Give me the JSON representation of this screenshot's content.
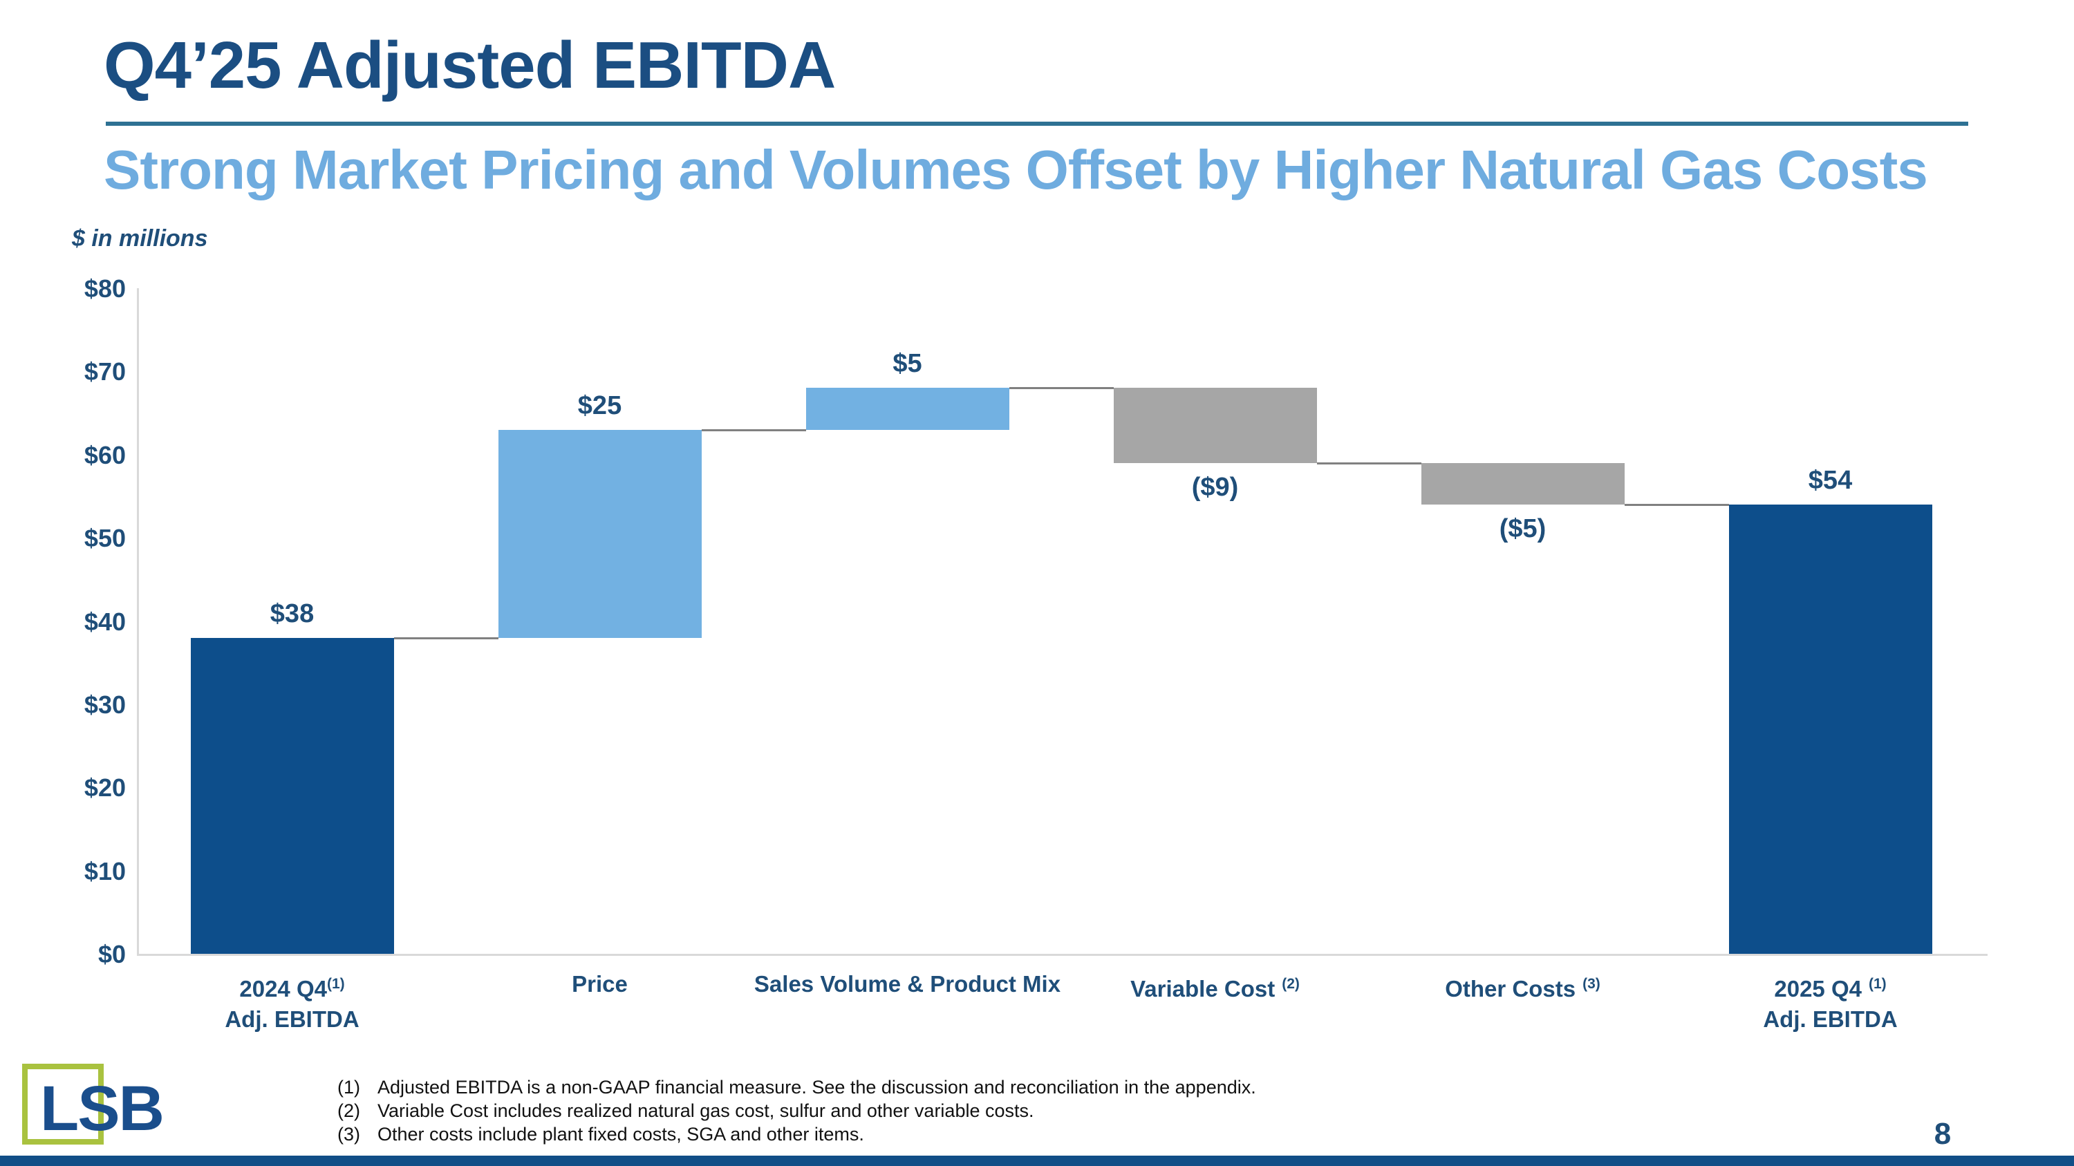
{
  "slide": {
    "title": "Q4’25 Adjusted EBITDA",
    "subtitle": "Strong Market Pricing and Volumes Offset by Higher Natural Gas Costs",
    "units_note": "$ in millions",
    "page_number": "8",
    "logo_text": "LSB"
  },
  "chart_data": {
    "type": "bar",
    "subtype": "waterfall",
    "title": "Q4'25 Adjusted EBITDA bridge, $ in millions",
    "ylabel": "$ in millions",
    "ylim": [
      0,
      80
    ],
    "ytick_step": 10,
    "yticks": [
      {
        "value": 0,
        "label": "$0"
      },
      {
        "value": 10,
        "label": "$10"
      },
      {
        "value": 20,
        "label": "$20"
      },
      {
        "value": 30,
        "label": "$30"
      },
      {
        "value": 40,
        "label": "$40"
      },
      {
        "value": 50,
        "label": "$50"
      },
      {
        "value": 60,
        "label": "$60"
      },
      {
        "value": 70,
        "label": "$70"
      },
      {
        "value": 80,
        "label": "$80"
      }
    ],
    "grid": false,
    "legend": "none",
    "bars": [
      {
        "name": "2024 Q4 Adj. EBITDA",
        "value": 38,
        "y0": 0,
        "y1": 38,
        "end": 38,
        "label": "$38",
        "label_pos": "above",
        "color_key": "navy"
      },
      {
        "name": "Price",
        "value": 25,
        "y0": 38,
        "y1": 63,
        "end": 63,
        "label": "$25",
        "label_pos": "above",
        "color_key": "lightblue"
      },
      {
        "name": "Sales Volume & Product Mix",
        "value": 5,
        "y0": 63,
        "y1": 68,
        "end": 68,
        "label": "$5",
        "label_pos": "above",
        "color_key": "lightblue"
      },
      {
        "name": "Variable Cost",
        "value": -9,
        "y0": 59,
        "y1": 68,
        "end": 59,
        "label": "($9)",
        "label_pos": "below",
        "color_key": "gray"
      },
      {
        "name": "Other Costs",
        "value": -5,
        "y0": 54,
        "y1": 59,
        "end": 54,
        "label": "($5)",
        "label_pos": "below",
        "color_key": "gray"
      },
      {
        "name": "2025 Q4 Adj. EBITDA",
        "value": 54,
        "y0": 0,
        "y1": 54,
        "end": 54,
        "label": "$54",
        "label_pos": "above",
        "color_key": "navy"
      }
    ],
    "categories": [
      {
        "line1": "2024 Q4",
        "sup": "(1)",
        "sup_spaced": false,
        "line2": "Adj. EBITDA"
      },
      {
        "line1": "Price",
        "sup": "",
        "sup_spaced": false,
        "line2": ""
      },
      {
        "line1": "Sales Volume & Product Mix",
        "sup": "",
        "sup_spaced": false,
        "line2": ""
      },
      {
        "line1": "Variable Cost",
        "sup": "(2)",
        "sup_spaced": true,
        "line2": ""
      },
      {
        "line1": "Other Costs",
        "sup": "(3)",
        "sup_spaced": true,
        "line2": ""
      },
      {
        "line1": "2025 Q4",
        "sup": "(1)",
        "sup_spaced": true,
        "line2": "Adj. EBITDA"
      }
    ]
  },
  "footnotes": [
    {
      "num": "(1)",
      "text": "Adjusted EBITDA is a non-GAAP financial measure.  See the discussion and reconciliation in the appendix."
    },
    {
      "num": "(2)",
      "text": "Variable Cost includes realized natural gas cost, sulfur and other variable costs."
    },
    {
      "num": "(3)",
      "text": "Other costs include plant fixed costs, SGA and other items."
    }
  ],
  "colors": {
    "navy_bar": "#0D4E8B",
    "lightblue_bar": "#72B1E2",
    "gray_bar": "#A6A6A6",
    "title_blue": "#1B4E82",
    "subtitle_blue": "#6FACDF",
    "underline_blue": "#2E7193",
    "label_blue": "#1F4E79",
    "axis_gray": "#D9D9D9",
    "connector_gray": "#808080",
    "footer_blue": "#114E87",
    "logo_green": "#A9C23F",
    "logo_navy": "#1A4E8C",
    "footnote_black": "#111111"
  }
}
